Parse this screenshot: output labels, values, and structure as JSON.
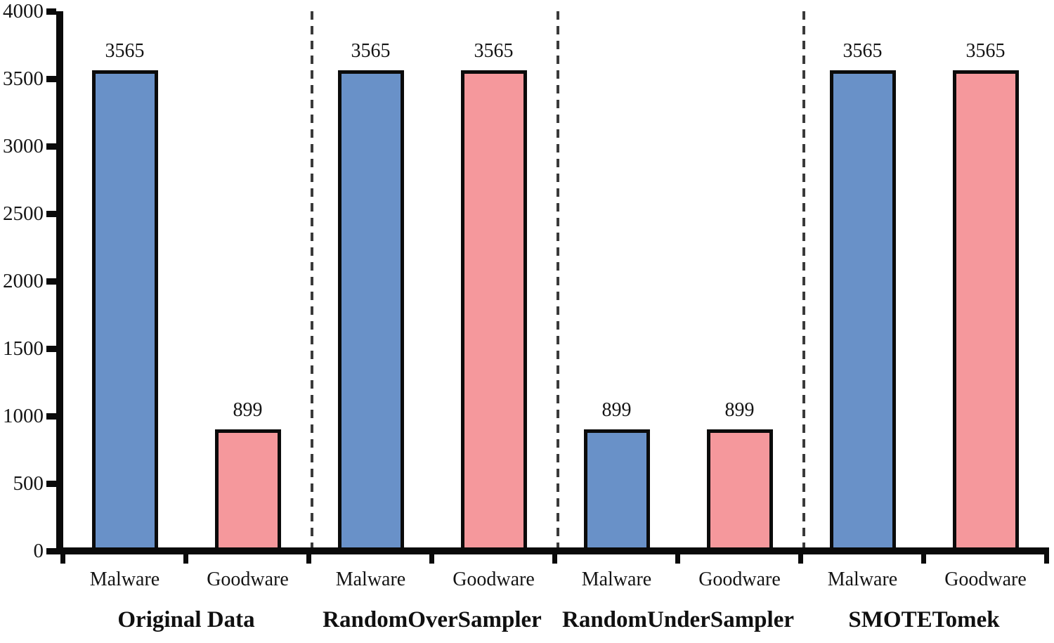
{
  "figure": {
    "background": "#FFFFFF",
    "axis_color": "#0A0A0A",
    "text_color": "#141414",
    "separator_color": "#3A3A3A"
  },
  "chart_data": {
    "type": "bar",
    "title": "",
    "xlabel": "",
    "ylabel": "",
    "ylim": [
      0,
      4000
    ],
    "ytick_step": 500,
    "yticks": [
      0,
      500,
      1000,
      1500,
      2000,
      2500,
      3000,
      3500,
      4000
    ],
    "ytick_labels": [
      "0",
      "500",
      "1000",
      "1500",
      "2000",
      "2500",
      "3000",
      "3500",
      "4000"
    ],
    "grid": false,
    "legend": false,
    "data_labels_shown": true,
    "group_separator_style": "dashed",
    "categories": [
      "Malware",
      "Goodware"
    ],
    "series_colors": {
      "Malware": "#6991C8",
      "Goodware": "#F5989C"
    },
    "bar_border_color": "#0B0B0B",
    "groups": [
      {
        "label": "Original Data",
        "bars": [
          {
            "category": "Malware",
            "value": 3565,
            "label": "3565",
            "color": "#6991C8"
          },
          {
            "category": "Goodware",
            "value": 899,
            "label": "899",
            "color": "#F5989C"
          }
        ]
      },
      {
        "label": "RandomOverSampler",
        "bars": [
          {
            "category": "Malware",
            "value": 3565,
            "label": "3565",
            "color": "#6991C8"
          },
          {
            "category": "Goodware",
            "value": 3565,
            "label": "3565",
            "color": "#F5989C"
          }
        ]
      },
      {
        "label": "RandomUnderSampler",
        "bars": [
          {
            "category": "Malware",
            "value": 899,
            "label": "899",
            "color": "#6991C8"
          },
          {
            "category": "Goodware",
            "value": 899,
            "label": "899",
            "color": "#F5989C"
          }
        ]
      },
      {
        "label": "SMOTETomek",
        "bars": [
          {
            "category": "Malware",
            "value": 3565,
            "label": "3565",
            "color": "#6991C8"
          },
          {
            "category": "Goodware",
            "value": 3565,
            "label": "3565",
            "color": "#F5989C"
          }
        ]
      }
    ]
  }
}
